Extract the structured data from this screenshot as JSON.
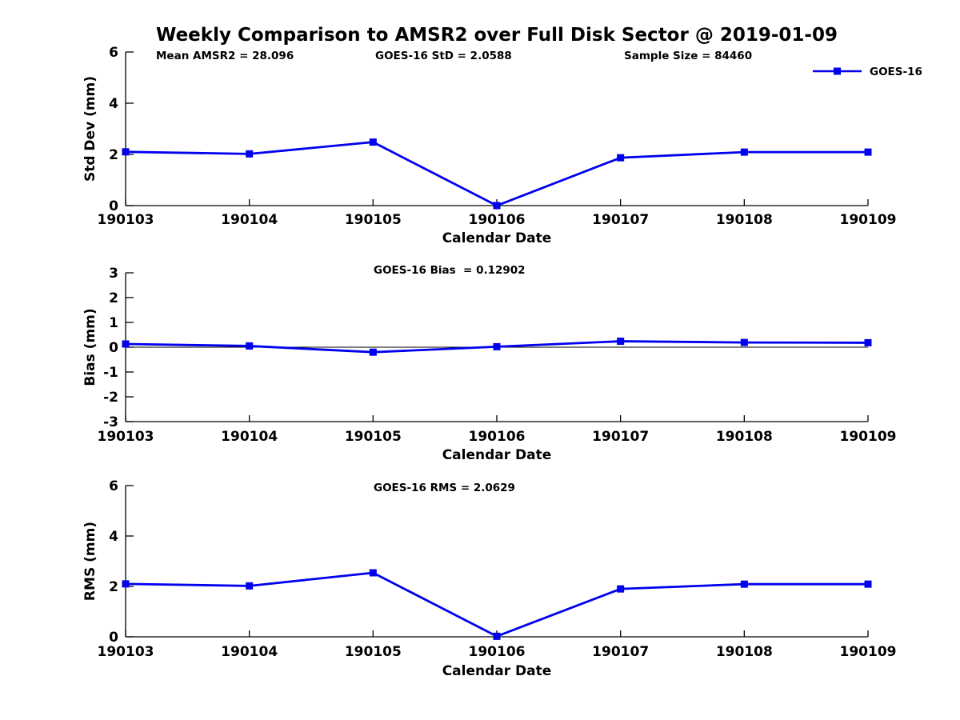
{
  "figure": {
    "title": "Weekly Comparison to AMSR2 over Full Disk Sector @ 2019-01-09",
    "series_color": "#0000ee",
    "axis_color": "#000000",
    "zero_line_color": "#000000",
    "legend": {
      "label": "GOES-16",
      "position": "top-right"
    }
  },
  "chart_data": [
    {
      "type": "line",
      "ylabel": "Std Dev (mm)",
      "xlabel": "Calendar Date",
      "ylim": [
        0,
        6
      ],
      "yticks": [
        0,
        2,
        4,
        6
      ],
      "grid": false,
      "categories": [
        "190103",
        "190104",
        "190105",
        "190106",
        "190107",
        "190108",
        "190109"
      ],
      "series": [
        {
          "name": "GOES-16",
          "values": [
            2.1,
            2.02,
            2.48,
            0.0,
            1.87,
            2.09,
            2.09
          ]
        }
      ],
      "annotations": [
        "Mean AMSR2 = 28.096",
        "GOES-16 StD = 2.0588",
        "Sample Size = 84460"
      ],
      "show_legend": true
    },
    {
      "type": "line",
      "ylabel": "Bias (mm)",
      "xlabel": "Calendar Date",
      "ylim": [
        -3,
        3
      ],
      "yticks": [
        -3,
        -2,
        -1,
        0,
        1,
        2,
        3
      ],
      "grid": false,
      "zero_line": true,
      "categories": [
        "190103",
        "190104",
        "190105",
        "190106",
        "190107",
        "190108",
        "190109"
      ],
      "series": [
        {
          "name": "GOES-16",
          "values": [
            0.13,
            0.05,
            -0.2,
            0.02,
            0.24,
            0.19,
            0.18
          ]
        }
      ],
      "annotations": [
        "GOES-16 Bias  = 0.12902"
      ],
      "show_legend": false
    },
    {
      "type": "line",
      "ylabel": "RMS (mm)",
      "xlabel": "Calendar Date",
      "ylim": [
        0,
        6
      ],
      "yticks": [
        0,
        2,
        4,
        6
      ],
      "grid": false,
      "categories": [
        "190103",
        "190104",
        "190105",
        "190106",
        "190107",
        "190108",
        "190109"
      ],
      "series": [
        {
          "name": "GOES-16",
          "values": [
            2.1,
            2.02,
            2.54,
            0.02,
            1.9,
            2.09,
            2.09
          ]
        }
      ],
      "annotations": [
        "GOES-16 RMS = 2.0629"
      ],
      "show_legend": false
    }
  ]
}
